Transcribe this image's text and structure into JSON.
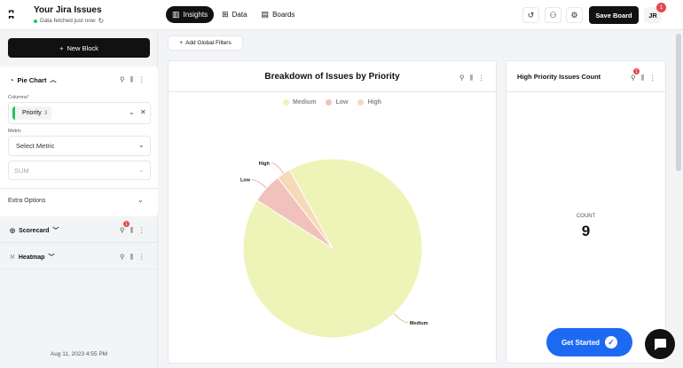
{
  "header": {
    "app_title": "Your Jira Issues",
    "status_text": "Data fetched just now",
    "tabs": [
      {
        "label": "Insights",
        "icon": "bar-chart-icon"
      },
      {
        "label": "Data",
        "icon": "table-icon"
      },
      {
        "label": "Boards",
        "icon": "board-icon"
      }
    ],
    "save_label": "Save Board",
    "avatar_initials": "JR",
    "notification_count": "1"
  },
  "sidebar": {
    "new_block_label": "New Block",
    "pie_block": {
      "title": "Pie Chart",
      "columns_label": "Columns",
      "column_chip": "Priority",
      "column_chip_count": "3",
      "metric_label": "Metric",
      "metric_placeholder": "Select Metric",
      "aggregation": "SUM",
      "extra_options": "Extra Options"
    },
    "blocks": [
      {
        "label": "Scorecard",
        "badge": "1"
      },
      {
        "label": "Heatmap"
      }
    ],
    "footer_date": "Aug 11, 2023 4:55 PM"
  },
  "toolbar": {
    "filters_label": "Add Global Filters"
  },
  "pie_panel": {
    "title": "Breakdown of Issues by Priority"
  },
  "count_panel": {
    "title": "High Priority Issues Count",
    "badge": "1",
    "label": "COUNT",
    "value": "9"
  },
  "chart_data": {
    "type": "pie",
    "title": "Breakdown of Issues by Priority",
    "categories": [
      "Medium",
      "Low",
      "High"
    ],
    "values": [
      92,
      5.5,
      2.5
    ],
    "colors": [
      "#eef4b8",
      "#f0c2bb",
      "#f6d9b9"
    ],
    "legend": "top"
  },
  "help": {
    "get_started_label": "Get Started"
  }
}
